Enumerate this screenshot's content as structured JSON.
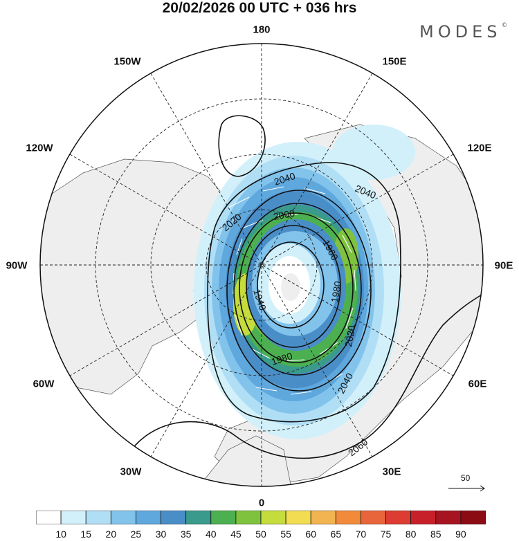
{
  "title": "20/02/2026  00 UTC  + 036 hrs",
  "brand": {
    "name": "MODES",
    "mark": "©"
  },
  "longitude_labels": {
    "top": "180",
    "bottom": "0",
    "left": "90W",
    "right": "90E",
    "w150": "150W",
    "e150": "150E",
    "w120": "120W",
    "e120": "120E",
    "w60": "60W",
    "e60": "60E",
    "w30": "30W",
    "e30": "30E"
  },
  "contour_labels": [
    "2040",
    "2040",
    "2020",
    "2000",
    "1960",
    "1980",
    "1940",
    "1980",
    "2020",
    "2040",
    "2060"
  ],
  "vector_scale": {
    "label": "50"
  },
  "colorbar": {
    "colors": [
      "#ffffff",
      "#d2f0fa",
      "#b0def5",
      "#82c3ec",
      "#5fa8de",
      "#4a8ec8",
      "#3a9a8c",
      "#4cb050",
      "#7ec23e",
      "#c4dc3c",
      "#f2dc52",
      "#f2b450",
      "#f28a3c",
      "#e8643a",
      "#dc3c32",
      "#c8202a",
      "#a51420",
      "#8c0c14"
    ],
    "ticks": [
      "10",
      "15",
      "20",
      "25",
      "30",
      "35",
      "40",
      "45",
      "50",
      "55",
      "60",
      "65",
      "70",
      "75",
      "80",
      "85",
      "90"
    ]
  }
}
